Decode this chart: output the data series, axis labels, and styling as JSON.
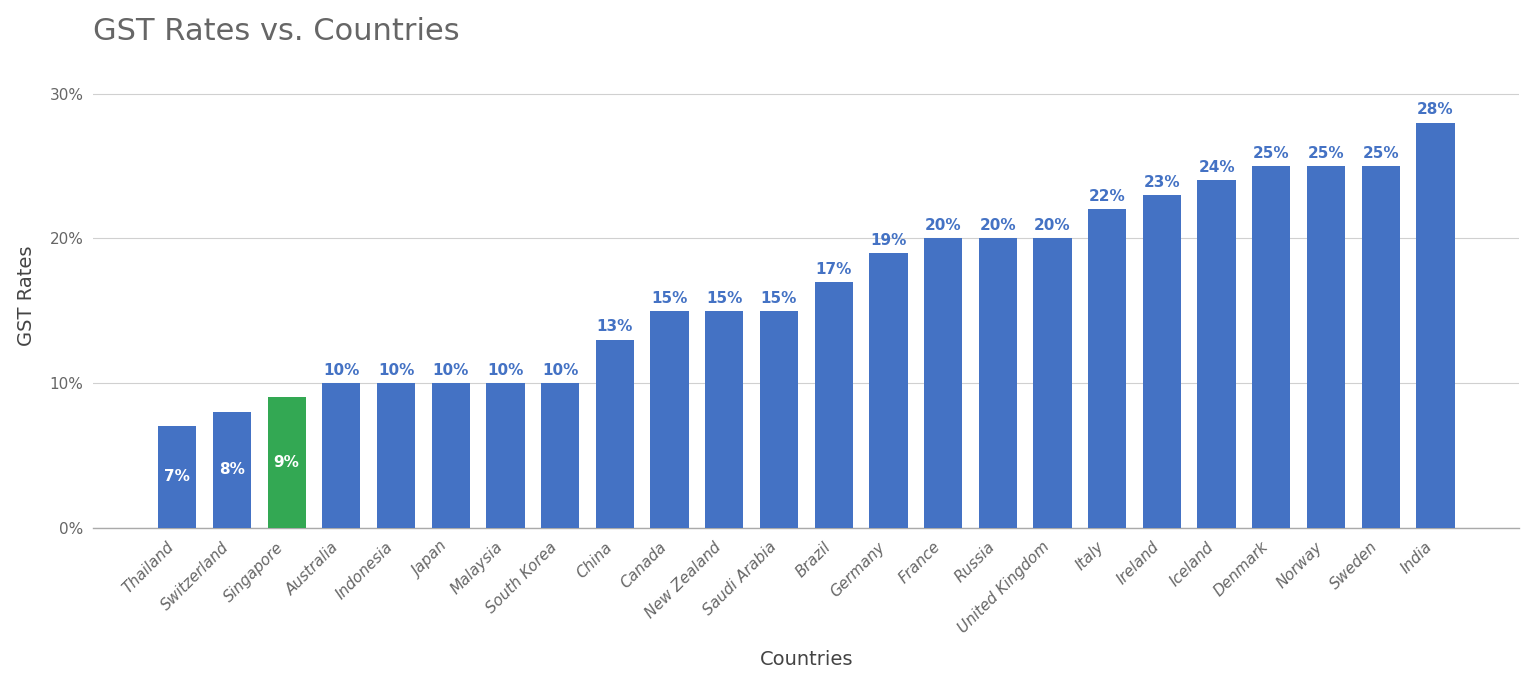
{
  "title": "GST Rates vs. Countries",
  "xlabel": "Countries",
  "ylabel": "GST Rates",
  "categories": [
    "Thailand",
    "Switzerland",
    "Singapore",
    "Australia",
    "Indonesia",
    "Japan",
    "Malaysia",
    "South Korea",
    "China",
    "Canada",
    "New Zealand",
    "Saudi Arabia",
    "Brazil",
    "Germany",
    "France",
    "Russia",
    "United Kingdom",
    "Italy",
    "Ireland",
    "Iceland",
    "Denmark",
    "Norway",
    "Sweden",
    "India"
  ],
  "values": [
    7,
    8,
    9,
    10,
    10,
    10,
    10,
    10,
    13,
    15,
    15,
    15,
    17,
    19,
    20,
    20,
    20,
    22,
    23,
    24,
    25,
    25,
    25,
    28
  ],
  "bar_colors": [
    "#4472C4",
    "#4472C4",
    "#33A853",
    "#4472C4",
    "#4472C4",
    "#4472C4",
    "#4472C4",
    "#4472C4",
    "#4472C4",
    "#4472C4",
    "#4472C4",
    "#4472C4",
    "#4472C4",
    "#4472C4",
    "#4472C4",
    "#4472C4",
    "#4472C4",
    "#4472C4",
    "#4472C4",
    "#4472C4",
    "#4472C4",
    "#4472C4",
    "#4472C4",
    "#4472C4"
  ],
  "inside_label_threshold": 9,
  "ylim": [
    0,
    32
  ],
  "yticks": [
    0,
    10,
    20,
    30
  ],
  "ytick_labels": [
    "0%",
    "10%",
    "20%",
    "30%"
  ],
  "background_color": "#ffffff",
  "title_fontsize": 22,
  "axis_label_fontsize": 14,
  "tick_fontsize": 11,
  "bar_label_fontsize": 11,
  "grid_color": "#d0d0d0",
  "title_color": "#666666",
  "axis_label_color": "#444444",
  "tick_color": "#666666",
  "above_label_color": "#4472C4",
  "inside_label_color": "#ffffff"
}
